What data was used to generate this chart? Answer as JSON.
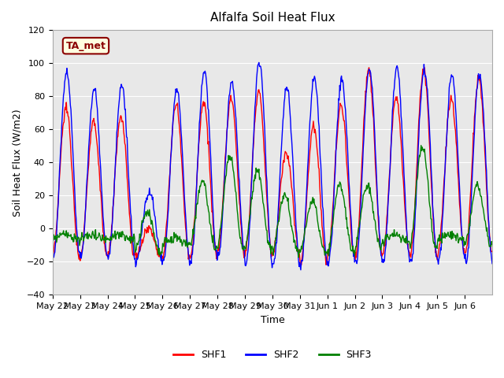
{
  "title": "Alfalfa Soil Heat Flux",
  "ylabel": "Soil Heat Flux (W/m2)",
  "xlabel": "Time",
  "ylim": [
    -40,
    120
  ],
  "bg_color": "#e8e8e8",
  "legend_label": "TA_met",
  "x_tick_labels": [
    "May 22",
    "May 23",
    "May 24",
    "May 25",
    "May 26",
    "May 27",
    "May 28",
    "May 29",
    "May 30",
    "May 31",
    "Jun 1",
    "Jun 2",
    "Jun 3",
    "Jun 4",
    "Jun 5",
    "Jun 6"
  ],
  "series_colors": [
    "red",
    "blue",
    "green"
  ],
  "series_labels": [
    "SHF1",
    "SHF2",
    "SHF3"
  ],
  "shf1_peaks": [
    73,
    65,
    67,
    0,
    75,
    77,
    79,
    83,
    46,
    62,
    75,
    96,
    80,
    96,
    79,
    91
  ],
  "shf1_troughs": [
    -17,
    -17,
    -17,
    -17,
    -17,
    -17,
    -14,
    -14,
    -14,
    -22,
    -16,
    -16,
    -14,
    -16,
    -14,
    -14
  ],
  "shf2_peaks": [
    95,
    84,
    87,
    22,
    84,
    95,
    89,
    101,
    85,
    91,
    90,
    97,
    97,
    97,
    93,
    93
  ],
  "shf2_troughs": [
    -17,
    -17,
    -17,
    -20,
    -20,
    -20,
    -16,
    -22,
    -22,
    -22,
    -20,
    -20,
    -20,
    -20,
    -20,
    -20
  ],
  "shf3_peaks": [
    0,
    0,
    0,
    10,
    0,
    29,
    44,
    35,
    20,
    17,
    26,
    26,
    0,
    50,
    0,
    26
  ],
  "shf3_troughs": [
    -10,
    -10,
    -10,
    -15,
    -15,
    -12,
    -12,
    -12,
    -15,
    -15,
    -15,
    -12,
    -10,
    -12,
    -10,
    -10
  ],
  "yticks": [
    -40,
    -20,
    0,
    20,
    40,
    60,
    80,
    100,
    120
  ],
  "days": 16,
  "pts_per_day": 48
}
